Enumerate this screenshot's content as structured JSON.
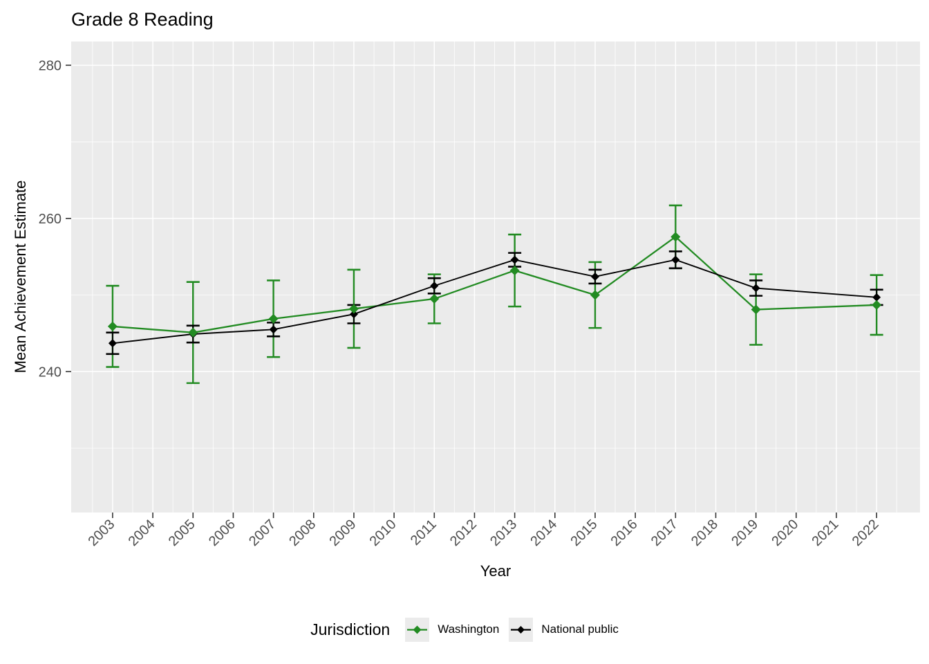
{
  "chart_data": {
    "type": "line",
    "title": "Grade 8 Reading",
    "xlabel": "Year",
    "ylabel": "Mean Achievement Estimate",
    "legend_title": "Jurisdiction",
    "legend_position": "bottom",
    "grid": "on",
    "panel_color": "#ebebeb",
    "gridline_color": "#ffffff",
    "tick_color": "#333333",
    "tick_label_color": "#4d4d4d",
    "x_ticks": [
      "2003",
      "2004",
      "2005",
      "2006",
      "2007",
      "2008",
      "2009",
      "2010",
      "2011",
      "2012",
      "2013",
      "2014",
      "2015",
      "2016",
      "2017",
      "2018",
      "2019",
      "2020",
      "2021",
      "2022"
    ],
    "y_ticks": [
      "240",
      "260",
      "280"
    ],
    "y_minor": [
      230,
      250,
      270
    ],
    "ylim": [
      221.6,
      283.1
    ],
    "xlim": [
      2001.97,
      2023.08
    ],
    "x": [
      2003,
      2005,
      2007,
      2009,
      2011,
      2013,
      2015,
      2017,
      2019,
      2022
    ],
    "series": [
      {
        "name": "Washington",
        "color": "#228B22",
        "marker": "diamond",
        "values": [
          245.9,
          245.1,
          246.9,
          248.2,
          249.5,
          253.2,
          250.0,
          257.6,
          248.1,
          248.7
        ],
        "error": [
          5.3,
          6.6,
          5.0,
          5.1,
          3.2,
          4.7,
          4.3,
          4.1,
          4.6,
          3.9
        ]
      },
      {
        "name": "National public",
        "color": "#000000",
        "marker": "diamond",
        "values": [
          243.7,
          244.9,
          245.5,
          247.5,
          251.2,
          254.6,
          252.4,
          254.6,
          250.9,
          249.7
        ],
        "error": [
          1.4,
          1.1,
          0.9,
          1.2,
          1.0,
          0.9,
          0.9,
          1.1,
          1.0,
          1.0
        ]
      }
    ]
  }
}
